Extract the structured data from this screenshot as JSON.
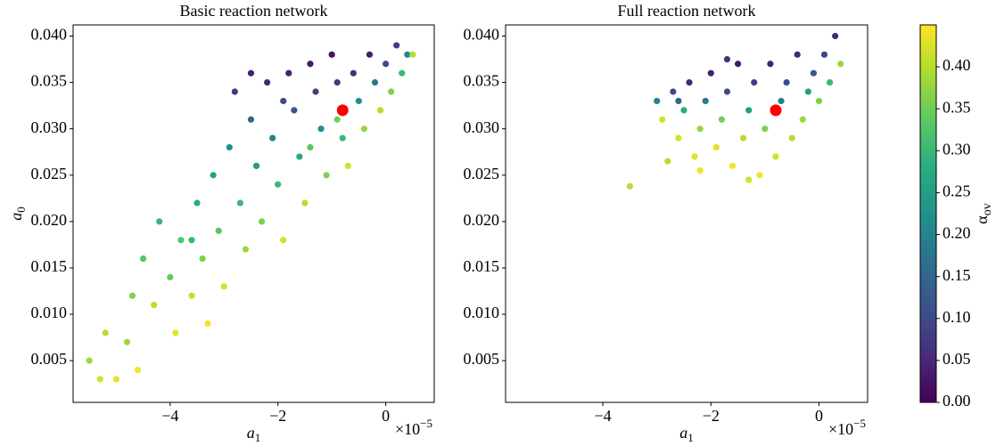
{
  "chart_data": [
    {
      "type": "scatter",
      "title": "Basic reaction network",
      "x_label": {
        "text": "a",
        "sub": "1"
      },
      "y_label": {
        "text": "a",
        "sub": "0"
      },
      "x_offset": {
        "text": "×10",
        "sup": "−5"
      },
      "xlim": [
        -5.8,
        0.9
      ],
      "ylim": [
        0.0005,
        0.0412
      ],
      "xticks": [
        {
          "value": -4,
          "label": "−4"
        },
        {
          "value": -2,
          "label": "−2"
        },
        0
      ],
      "yticks": [
        0.005,
        {
          "value": 0.01,
          "label": "0.010"
        },
        0.015,
        {
          "value": 0.02,
          "label": "0.020"
        },
        0.025,
        {
          "value": 0.03,
          "label": "0.030"
        },
        0.035,
        {
          "value": 0.04,
          "label": "0.040"
        }
      ],
      "series": [
        {
          "x": [
            -5.5,
            -5.3,
            -5.2,
            -5.0,
            -4.8,
            -4.6,
            -4.7,
            -4.5,
            -4.3,
            -4.2,
            -4.0,
            -3.9,
            -3.8,
            -3.6,
            -3.5,
            -3.4,
            -3.3,
            -3.2,
            -3.1,
            -3.0,
            -2.9,
            -2.8,
            -2.7,
            -2.6,
            -2.5,
            -2.4,
            -2.3,
            -2.2,
            -2.1,
            -2.0,
            -1.9,
            -1.8,
            -1.7,
            -1.6,
            -1.5,
            -1.4,
            -1.3,
            -1.2,
            -1.1,
            -1.0,
            -0.9,
            -0.8,
            -0.7,
            -0.6,
            -0.5,
            -0.4,
            -0.3,
            -0.2,
            -0.1,
            0.0,
            0.1,
            0.2,
            0.3,
            0.4,
            0.5,
            -2.5,
            -1.9,
            -3.6,
            -1.4,
            -0.9
          ],
          "y": [
            0.005,
            0.003,
            0.008,
            0.003,
            0.007,
            0.004,
            0.012,
            0.016,
            0.011,
            0.02,
            0.014,
            0.008,
            0.018,
            0.012,
            0.022,
            0.016,
            0.009,
            0.025,
            0.019,
            0.013,
            0.028,
            0.034,
            0.022,
            0.017,
            0.031,
            0.026,
            0.02,
            0.035,
            0.029,
            0.024,
            0.018,
            0.036,
            0.032,
            0.027,
            0.022,
            0.037,
            0.034,
            0.03,
            0.025,
            0.038,
            0.035,
            0.029,
            0.026,
            0.036,
            0.033,
            0.03,
            0.038,
            0.035,
            0.032,
            0.037,
            0.034,
            0.039,
            0.036,
            0.038,
            0.038,
            0.036,
            0.033,
            0.018,
            0.028,
            0.031
          ],
          "c": [
            0.38,
            0.42,
            0.4,
            0.43,
            0.38,
            0.44,
            0.36,
            0.33,
            0.4,
            0.3,
            0.34,
            0.43,
            0.33,
            0.41,
            0.28,
            0.36,
            0.44,
            0.26,
            0.33,
            0.42,
            0.22,
            0.07,
            0.3,
            0.38,
            0.15,
            0.24,
            0.36,
            0.05,
            0.2,
            0.3,
            0.42,
            0.04,
            0.12,
            0.27,
            0.4,
            0.03,
            0.08,
            0.22,
            0.36,
            0.02,
            0.07,
            0.3,
            0.42,
            0.06,
            0.22,
            0.38,
            0.04,
            0.18,
            0.4,
            0.1,
            0.36,
            0.08,
            0.3,
            0.2,
            0.4,
            0.04,
            0.1,
            0.3,
            0.33,
            0.35
          ]
        }
      ],
      "marker": {
        "x": -0.8,
        "y": 0.032,
        "color": "#ff0000"
      }
    },
    {
      "type": "scatter",
      "title": "Full reaction network",
      "x_label": {
        "text": "a",
        "sub": "1"
      },
      "x_offset": {
        "text": "×10",
        "sup": "−5"
      },
      "xlim": [
        -5.8,
        0.9
      ],
      "ylim": [
        0.0005,
        0.0412
      ],
      "xticks": [
        {
          "value": -4,
          "label": "−4"
        },
        {
          "value": -2,
          "label": "−2"
        },
        0
      ],
      "yticks": [
        0.005,
        {
          "value": 0.01,
          "label": "0.010"
        },
        0.015,
        {
          "value": 0.02,
          "label": "0.020"
        },
        0.025,
        {
          "value": 0.03,
          "label": "0.030"
        },
        0.035,
        {
          "value": 0.04,
          "label": "0.040"
        }
      ],
      "series": [
        {
          "x": [
            -3.5,
            -3.0,
            -2.9,
            -2.8,
            -2.7,
            -2.6,
            -2.5,
            -2.4,
            -2.3,
            -2.2,
            -2.1,
            -2.0,
            -1.9,
            -1.8,
            -1.7,
            -1.6,
            -1.5,
            -1.4,
            -1.3,
            -1.2,
            -1.1,
            -1.0,
            -0.9,
            -0.8,
            -0.7,
            -0.6,
            -0.5,
            -0.4,
            -0.3,
            -0.2,
            -0.1,
            0.0,
            0.1,
            0.2,
            0.3,
            0.4,
            -2.2,
            -1.3,
            -2.6,
            -1.7
          ],
          "y": [
            0.0238,
            0.033,
            0.031,
            0.0265,
            0.034,
            0.029,
            0.032,
            0.035,
            0.027,
            0.03,
            0.033,
            0.036,
            0.028,
            0.031,
            0.034,
            0.026,
            0.037,
            0.029,
            0.032,
            0.035,
            0.025,
            0.03,
            0.037,
            0.027,
            0.033,
            0.035,
            0.029,
            0.038,
            0.031,
            0.034,
            0.036,
            0.033,
            0.038,
            0.035,
            0.04,
            0.037,
            0.0255,
            0.0245,
            0.033,
            0.0375
          ],
          "c": [
            0.4,
            0.2,
            0.42,
            0.4,
            0.1,
            0.42,
            0.28,
            0.05,
            0.43,
            0.38,
            0.18,
            0.04,
            0.43,
            0.35,
            0.1,
            0.44,
            0.03,
            0.4,
            0.25,
            0.08,
            0.44,
            0.36,
            0.04,
            0.42,
            0.2,
            0.1,
            0.4,
            0.05,
            0.38,
            0.25,
            0.12,
            0.36,
            0.1,
            0.3,
            0.05,
            0.38,
            0.44,
            0.42,
            0.15,
            0.06
          ]
        }
      ],
      "marker": {
        "x": -0.8,
        "y": 0.032,
        "color": "#ff0000"
      }
    },
    {
      "type": "colorbar",
      "label": {
        "text": "α",
        "sub": "ov"
      },
      "colormap": "viridis",
      "clim": [
        0,
        0.45
      ],
      "ticks": [
        {
          "value": 0,
          "label": "0.00"
        },
        0.05,
        {
          "value": 0.1,
          "label": "0.10"
        },
        0.15,
        {
          "value": 0.2,
          "label": "0.20"
        },
        0.25,
        {
          "value": 0.3,
          "label": "0.30"
        },
        0.35,
        {
          "value": 0.4,
          "label": "0.40"
        }
      ]
    }
  ]
}
